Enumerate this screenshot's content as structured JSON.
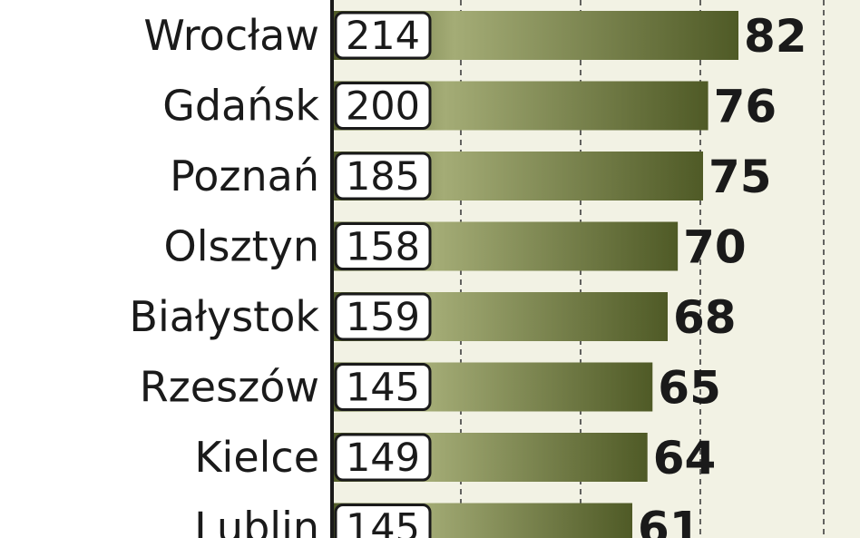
{
  "chart_data": {
    "type": "bar",
    "orientation": "horizontal",
    "categories": [
      "Wrocław",
      "Gdańsk",
      "Poznań",
      "Olsztyn",
      "Białystok",
      "Rzeszów",
      "Kielce",
      "Lublin"
    ],
    "counts": [
      "214",
      "200",
      "185",
      "158",
      "159",
      "145",
      "149",
      "145"
    ],
    "values": [
      82,
      76,
      75,
      70,
      68,
      65,
      64,
      61
    ],
    "value_labels": [
      "82",
      "76",
      "75",
      "70",
      "68",
      "65",
      "64",
      "61"
    ],
    "grid": true,
    "colors": {
      "bar_dark": "#4f5a26",
      "bar_light": "#a4ac76",
      "background_band": "#f2f2e4",
      "axis": "#1a1a1a",
      "gridline": "#333333",
      "badge_border": "#1a1a1a",
      "badge_fill": "#ffffff"
    }
  }
}
